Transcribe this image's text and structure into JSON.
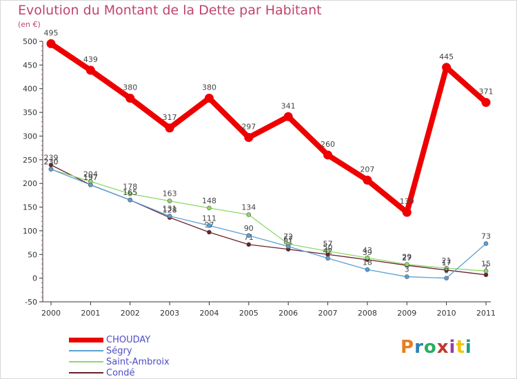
{
  "header": {
    "title": "Evolution du Montant de la Dette par Habitant",
    "unit": "(en €)"
  },
  "logo": {
    "text": "Proxiti",
    "letter_colors": [
      "#e67e22",
      "#2980b9",
      "#27ae60",
      "#c0392b",
      "#8e44ad",
      "#f1c40f",
      "#16a085"
    ]
  },
  "chart_data": {
    "type": "line",
    "title": "Evolution du Montant de la Dette par Habitant",
    "ylabel": "(en €)",
    "x": [
      "2000",
      "2001",
      "2002",
      "2003",
      "2004",
      "2005",
      "2006",
      "2007",
      "2008",
      "2009",
      "2010",
      "2011"
    ],
    "ylim": [
      -50,
      500
    ],
    "yticks": [
      -50,
      0,
      50,
      100,
      150,
      200,
      250,
      300,
      350,
      400,
      450,
      500
    ],
    "grid": false,
    "legend_position": "bottom-left",
    "series": [
      {
        "name": "CHOUDAY",
        "color": "#ee0000",
        "values": [
          495,
          439,
          380,
          317,
          380,
          297,
          341,
          260,
          207,
          139,
          445,
          371
        ]
      },
      {
        "name": "Ségry",
        "color": "#5a9fd4",
        "values": [
          230,
          197,
          165,
          131,
          111,
          90,
          67,
          42,
          18,
          3,
          0,
          73
        ]
      },
      {
        "name": "Saint-Ambroix",
        "color": "#8fd86a",
        "values": [
          230,
          204,
          178,
          163,
          148,
          134,
          72,
          57,
          43,
          29,
          21,
          15
        ]
      },
      {
        "name": "Condé",
        "color": "#6b1f2a",
        "values": [
          239,
          197,
          165,
          128,
          97,
          71,
          61,
          50,
          39,
          27,
          17,
          7
        ]
      }
    ]
  }
}
